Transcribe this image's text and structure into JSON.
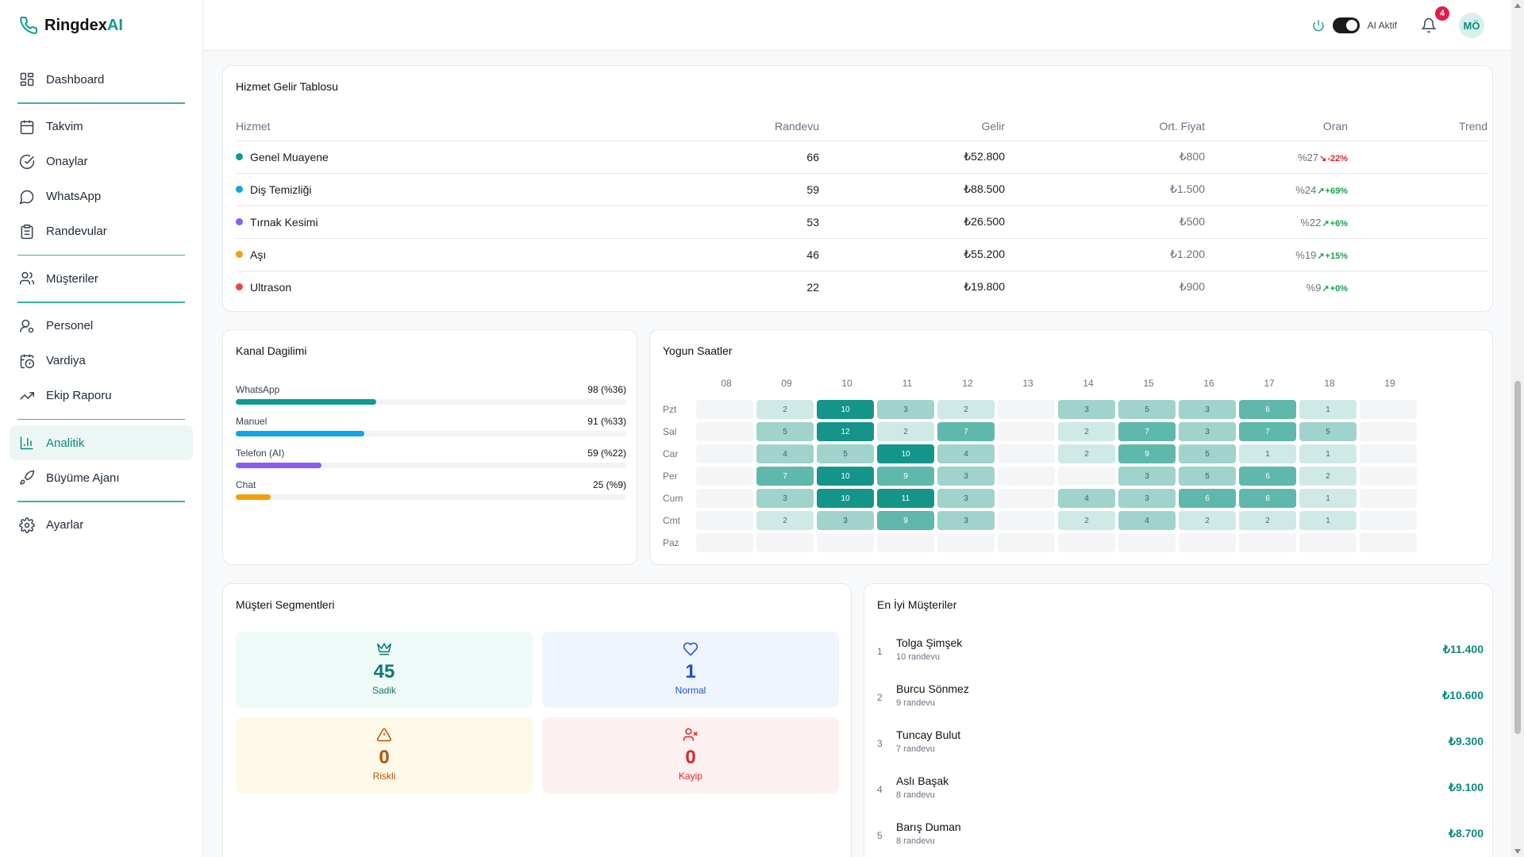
{
  "brand": {
    "name": "Ringdex",
    "suffix": "AI",
    "accent": "#0f9b8e"
  },
  "sidebar": {
    "items": [
      {
        "label": "Dashboard",
        "icon": "dashboard-icon"
      },
      {
        "label": "Takvim",
        "icon": "calendar-icon"
      },
      {
        "label": "Onaylar",
        "icon": "check-circle-icon"
      },
      {
        "label": "WhatsApp",
        "icon": "chat-bubble-icon"
      },
      {
        "label": "Randevular",
        "icon": "clipboard-icon"
      },
      {
        "label": "Müşteriler",
        "icon": "users-icon"
      },
      {
        "label": "Personel",
        "icon": "user-gear-icon"
      },
      {
        "label": "Vardiya",
        "icon": "calendar-clock-icon"
      },
      {
        "label": "Ekip Raporu",
        "icon": "trend-up-icon"
      },
      {
        "label": "Analitik",
        "icon": "bar-chart-icon",
        "active": true
      },
      {
        "label": "Büyüme Ajanı",
        "icon": "rocket-icon"
      },
      {
        "label": "Ayarlar",
        "icon": "gear-icon"
      }
    ]
  },
  "header": {
    "ai_label": "AI Aktif",
    "ai_enabled": true,
    "notifications": "4",
    "avatar": "MÖ"
  },
  "services": {
    "title": "Hizmet Gelir Tablosu",
    "columns": [
      "Hizmet",
      "Randevu",
      "Gelir",
      "Ort. Fiyat",
      "Oran",
      "Trend"
    ],
    "rows": [
      {
        "name": "Genel Muayene",
        "color": "#0f9b8e",
        "randevu": "66",
        "gelir": "₺52.800",
        "ort": "₺800",
        "oran": "%27",
        "change": "-22%",
        "dir": "down"
      },
      {
        "name": "Diş Temizliği",
        "color": "#0ea5e9",
        "randevu": "59",
        "gelir": "₺88.500",
        "ort": "₺1.500",
        "oran": "%24",
        "change": "+69%",
        "dir": "up"
      },
      {
        "name": "Tırnak Kesimi",
        "color": "#8b5cf6",
        "randevu": "53",
        "gelir": "₺26.500",
        "ort": "₺500",
        "oran": "%22",
        "change": "+6%",
        "dir": "up"
      },
      {
        "name": "Aşı",
        "color": "#f59e0b",
        "randevu": "46",
        "gelir": "₺55.200",
        "ort": "₺1.200",
        "oran": "%19",
        "change": "+15%",
        "dir": "up"
      },
      {
        "name": "Ultrason",
        "color": "#ef4444",
        "randevu": "22",
        "gelir": "₺19.800",
        "ort": "₺900",
        "oran": "%9",
        "change": "+0%",
        "dir": "up"
      }
    ]
  },
  "channels": {
    "title": "Kanal Dagilimi",
    "items": [
      {
        "name": "WhatsApp",
        "value": "98 (%36)",
        "pct": 36,
        "color": "#0f9b8e"
      },
      {
        "name": "Manuel",
        "value": "91 (%33)",
        "pct": 33,
        "color": "#0ea5e9"
      },
      {
        "name": "Telefon (AI)",
        "value": "59 (%22)",
        "pct": 22,
        "color": "#8b5cf6"
      },
      {
        "name": "Chat",
        "value": "25 (%9)",
        "pct": 9,
        "color": "#f59e0b"
      }
    ]
  },
  "heatmap": {
    "title": "Yogun Saatler",
    "hours": [
      "08",
      "09",
      "10",
      "11",
      "12",
      "13",
      "14",
      "15",
      "16",
      "17",
      "18",
      "19"
    ],
    "days": [
      "Pzt",
      "Sal",
      "Car",
      "Per",
      "Cum",
      "Cmt",
      "Paz"
    ],
    "values": [
      [
        0,
        2,
        10,
        3,
        2,
        0,
        3,
        5,
        3,
        6,
        1,
        0
      ],
      [
        0,
        5,
        12,
        2,
        7,
        0,
        2,
        7,
        3,
        7,
        5,
        0
      ],
      [
        0,
        4,
        5,
        10,
        4,
        0,
        2,
        9,
        5,
        1,
        1,
        0
      ],
      [
        0,
        7,
        10,
        9,
        3,
        0,
        0,
        3,
        5,
        6,
        2,
        0
      ],
      [
        0,
        3,
        10,
        11,
        3,
        0,
        4,
        3,
        6,
        6,
        1,
        0
      ],
      [
        0,
        2,
        3,
        9,
        3,
        0,
        2,
        4,
        2,
        2,
        1,
        0
      ],
      [
        0,
        0,
        0,
        0,
        0,
        0,
        0,
        0,
        0,
        0,
        0,
        0
      ]
    ]
  },
  "segments": {
    "title": "Müşteri Segmentleri",
    "items": [
      {
        "key": "sadik",
        "value": "45",
        "label": "Sadik",
        "icon": "crown-icon"
      },
      {
        "key": "normal",
        "value": "1",
        "label": "Normal",
        "icon": "heart-icon"
      },
      {
        "key": "riskli",
        "value": "0",
        "label": "Riskli",
        "icon": "warning-icon"
      },
      {
        "key": "kayip",
        "value": "0",
        "label": "Kayip",
        "icon": "user-x-icon"
      }
    ]
  },
  "top_customers": {
    "title": "En İyi Müşteriler",
    "items": [
      {
        "rank": "1",
        "name": "Tolga Şimşek",
        "sub": "10 randevu",
        "amount": "₺11.400"
      },
      {
        "rank": "2",
        "name": "Burcu Sönmez",
        "sub": "9 randevu",
        "amount": "₺10.600"
      },
      {
        "rank": "3",
        "name": "Tuncay Bulut",
        "sub": "7 randevu",
        "amount": "₺9.300"
      },
      {
        "rank": "4",
        "name": "Aslı Başak",
        "sub": "8 randevu",
        "amount": "₺9.100"
      },
      {
        "rank": "5",
        "name": "Barış Duman",
        "sub": "8 randevu",
        "amount": "₺8.700"
      }
    ]
  }
}
